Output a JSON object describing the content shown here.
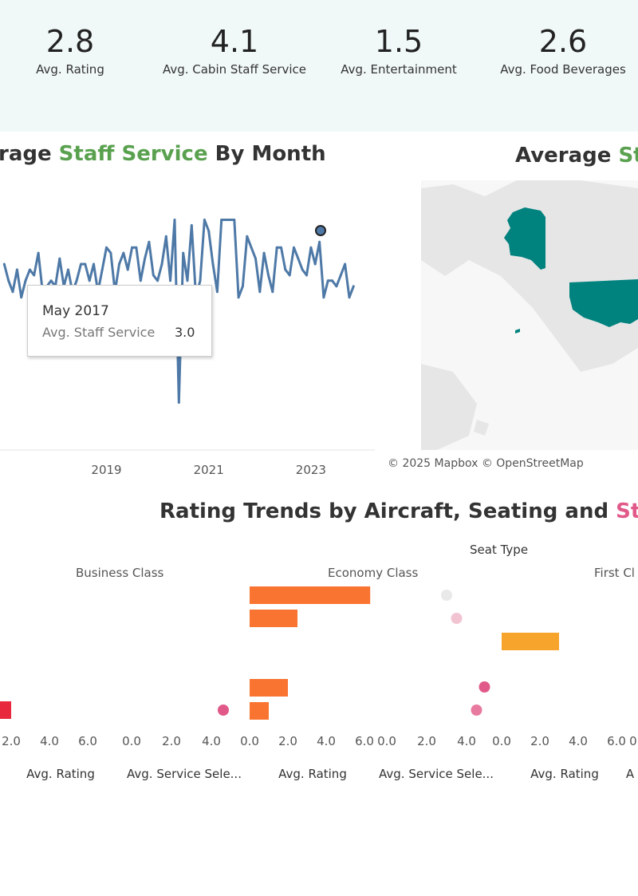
{
  "kpis": [
    {
      "value": "2.8",
      "label": "Avg. Rating"
    },
    {
      "value": "4.1",
      "label": "Avg. Cabin Staff Service"
    },
    {
      "value": "1.5",
      "label": "Avg. Entertainment"
    },
    {
      "value": "2.6",
      "label": "Avg. Food Beverages"
    }
  ],
  "line_title": {
    "pre": "rage ",
    "hl": "Staff Service",
    "post": " By Month"
  },
  "map_title": {
    "pre": "Average ",
    "hl": "Sta"
  },
  "bar_title": {
    "pre": "Rating Trends by Aircraft, Seating  and ",
    "hl": "Staf"
  },
  "tooltip": {
    "date": "May 2017",
    "label": "Avg. Staff Service",
    "value": "3.0"
  },
  "map_attribution": "© 2025 Mapbox  © OpenStreetMap",
  "seat_type_label": "Seat Type",
  "seat_types": [
    "Business Class",
    "Economy Class",
    "First Cl"
  ],
  "axis_titles": [
    "Avg. Rating",
    "Avg. Service Sele...",
    "Avg. Rating",
    "Avg. Service Sele...",
    "Avg. Rating",
    "A"
  ],
  "colors": {
    "line": "#4e79a7",
    "kpi_band": "#f1f8f8",
    "map_fill": "#00827f",
    "land": "#e6e6e6"
  },
  "chart_data": [
    {
      "type": "line",
      "title": "Average Staff Service By Month",
      "x_ticks": [
        "2019",
        "2021",
        "2023"
      ],
      "xlim": [
        "2016-12",
        "2024-04"
      ],
      "ylim": [
        0.3,
        5.2
      ],
      "series": [
        {
          "x": [
            "2017-01",
            "2017-02",
            "2017-03",
            "2017-04",
            "2017-05",
            "2017-06",
            "2017-07",
            "2017-08",
            "2017-09",
            "2017-10",
            "2017-11",
            "2017-12",
            "2018-01",
            "2018-02",
            "2018-03",
            "2018-04",
            "2018-05",
            "2018-06",
            "2018-07",
            "2018-08",
            "2018-09",
            "2018-10",
            "2018-11",
            "2018-12",
            "2019-01",
            "2019-02",
            "2019-03",
            "2019-04",
            "2019-05",
            "2019-06",
            "2019-07",
            "2019-08",
            "2019-09",
            "2019-10",
            "2019-11",
            "2019-12",
            "2020-01",
            "2020-02",
            "2020-03",
            "2020-04",
            "2020-05",
            "2020-06",
            "2020-07",
            "2020-08",
            "2020-09",
            "2020-10",
            "2020-11",
            "2020-12",
            "2021-01",
            "2021-02",
            "2021-03",
            "2021-04",
            "2021-05",
            "2021-06",
            "2021-07",
            "2021-08",
            "2021-09",
            "2021-10",
            "2021-11",
            "2021-12",
            "2022-01",
            "2022-02",
            "2022-03",
            "2022-04",
            "2022-05",
            "2022-06",
            "2022-07",
            "2022-08",
            "2022-09",
            "2022-10",
            "2022-11",
            "2022-12",
            "2023-01",
            "2023-02",
            "2023-03",
            "2023-04",
            "2023-05",
            "2023-06",
            "2023-07",
            "2023-08",
            "2023-09",
            "2023-10",
            "2023-11"
          ],
          "y": [
            3.6,
            3.3,
            3.1,
            3.5,
            3.0,
            3.3,
            3.5,
            3.4,
            3.8,
            3.1,
            3.2,
            3.3,
            3.2,
            3.7,
            3.2,
            3.5,
            3.1,
            3.3,
            3.6,
            3.6,
            3.3,
            3.6,
            3.1,
            3.5,
            3.9,
            3.8,
            3.1,
            3.6,
            3.8,
            3.5,
            3.9,
            3.9,
            3.3,
            3.7,
            4.0,
            3.4,
            3.3,
            3.6,
            4.1,
            3.3,
            4.4,
            1.1,
            3.8,
            3.3,
            4.3,
            3.0,
            3.3,
            4.4,
            4.2,
            3.6,
            3.1,
            4.4,
            4.4,
            4.4,
            4.4,
            3.0,
            3.2,
            4.1,
            3.9,
            3.7,
            3.1,
            3.8,
            3.4,
            3.1,
            3.9,
            3.9,
            3.5,
            3.4,
            3.9,
            3.7,
            3.5,
            3.4,
            3.9,
            3.6,
            4.0,
            3.0,
            3.3,
            3.3,
            3.2,
            3.4,
            3.6,
            3.0,
            3.2
          ]
        }
      ]
    },
    {
      "type": "bar",
      "title": "Rating Trends by Aircraft, Seating and Staff",
      "panels": [
        "Business Class",
        "Economy Class",
        "First Class"
      ],
      "x_ticks_rating": [
        "0.0",
        "2.0",
        "4.0",
        "6.0"
      ],
      "x_ticks_service": [
        "0.0",
        "2.0",
        "4.0"
      ],
      "bars": [
        {
          "panel": "Business Class",
          "value": 2.0,
          "color": "#e8283c"
        },
        {
          "panel": "Economy Class",
          "value": 6.3,
          "color": "#f97331"
        },
        {
          "panel": "Economy Class",
          "value": 2.5,
          "color": "#f97331"
        },
        {
          "panel": "Economy Class",
          "value": 2.0,
          "color": "#f97331"
        },
        {
          "panel": "Economy Class",
          "value": 1.0,
          "color": "#f97331"
        },
        {
          "panel": "First Class",
          "value": 3.0,
          "color": "#f7a42d"
        }
      ],
      "dots": [
        {
          "panel": "Business Class",
          "value": 4.6,
          "color": "#e15989"
        },
        {
          "panel": "Economy Class",
          "value": 3.0,
          "color": "#e9e9e9"
        },
        {
          "panel": "Economy Class",
          "value": 3.5,
          "color": "#f2c4d2"
        },
        {
          "panel": "Economy Class",
          "value": 4.9,
          "color": "#e15989"
        },
        {
          "panel": "Economy Class",
          "value": 4.5,
          "color": "#e87a9f"
        }
      ]
    }
  ]
}
